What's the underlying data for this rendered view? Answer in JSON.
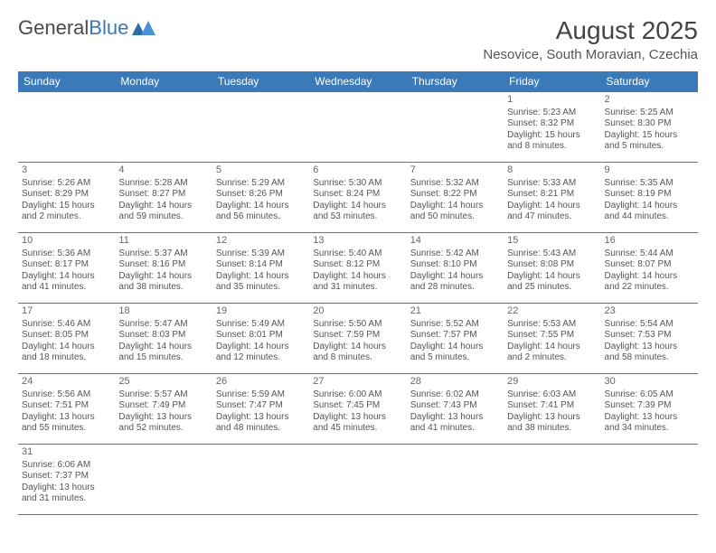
{
  "logo": {
    "text1": "General",
    "text2": "Blue"
  },
  "title": "August 2025",
  "location": "Nesovice, South Moravian, Czechia",
  "colors": {
    "header_bg": "#3a7ab8",
    "border": "#3a7ab8",
    "text": "#555555"
  },
  "weekdays": [
    "Sunday",
    "Monday",
    "Tuesday",
    "Wednesday",
    "Thursday",
    "Friday",
    "Saturday"
  ],
  "weeks": [
    [
      null,
      null,
      null,
      null,
      null,
      {
        "d": "1",
        "sr": "Sunrise: 5:23 AM",
        "ss": "Sunset: 8:32 PM",
        "dl": "Daylight: 15 hours and 8 minutes."
      },
      {
        "d": "2",
        "sr": "Sunrise: 5:25 AM",
        "ss": "Sunset: 8:30 PM",
        "dl": "Daylight: 15 hours and 5 minutes."
      }
    ],
    [
      {
        "d": "3",
        "sr": "Sunrise: 5:26 AM",
        "ss": "Sunset: 8:29 PM",
        "dl": "Daylight: 15 hours and 2 minutes."
      },
      {
        "d": "4",
        "sr": "Sunrise: 5:28 AM",
        "ss": "Sunset: 8:27 PM",
        "dl": "Daylight: 14 hours and 59 minutes."
      },
      {
        "d": "5",
        "sr": "Sunrise: 5:29 AM",
        "ss": "Sunset: 8:26 PM",
        "dl": "Daylight: 14 hours and 56 minutes."
      },
      {
        "d": "6",
        "sr": "Sunrise: 5:30 AM",
        "ss": "Sunset: 8:24 PM",
        "dl": "Daylight: 14 hours and 53 minutes."
      },
      {
        "d": "7",
        "sr": "Sunrise: 5:32 AM",
        "ss": "Sunset: 8:22 PM",
        "dl": "Daylight: 14 hours and 50 minutes."
      },
      {
        "d": "8",
        "sr": "Sunrise: 5:33 AM",
        "ss": "Sunset: 8:21 PM",
        "dl": "Daylight: 14 hours and 47 minutes."
      },
      {
        "d": "9",
        "sr": "Sunrise: 5:35 AM",
        "ss": "Sunset: 8:19 PM",
        "dl": "Daylight: 14 hours and 44 minutes."
      }
    ],
    [
      {
        "d": "10",
        "sr": "Sunrise: 5:36 AM",
        "ss": "Sunset: 8:17 PM",
        "dl": "Daylight: 14 hours and 41 minutes."
      },
      {
        "d": "11",
        "sr": "Sunrise: 5:37 AM",
        "ss": "Sunset: 8:16 PM",
        "dl": "Daylight: 14 hours and 38 minutes."
      },
      {
        "d": "12",
        "sr": "Sunrise: 5:39 AM",
        "ss": "Sunset: 8:14 PM",
        "dl": "Daylight: 14 hours and 35 minutes."
      },
      {
        "d": "13",
        "sr": "Sunrise: 5:40 AM",
        "ss": "Sunset: 8:12 PM",
        "dl": "Daylight: 14 hours and 31 minutes."
      },
      {
        "d": "14",
        "sr": "Sunrise: 5:42 AM",
        "ss": "Sunset: 8:10 PM",
        "dl": "Daylight: 14 hours and 28 minutes."
      },
      {
        "d": "15",
        "sr": "Sunrise: 5:43 AM",
        "ss": "Sunset: 8:08 PM",
        "dl": "Daylight: 14 hours and 25 minutes."
      },
      {
        "d": "16",
        "sr": "Sunrise: 5:44 AM",
        "ss": "Sunset: 8:07 PM",
        "dl": "Daylight: 14 hours and 22 minutes."
      }
    ],
    [
      {
        "d": "17",
        "sr": "Sunrise: 5:46 AM",
        "ss": "Sunset: 8:05 PM",
        "dl": "Daylight: 14 hours and 18 minutes."
      },
      {
        "d": "18",
        "sr": "Sunrise: 5:47 AM",
        "ss": "Sunset: 8:03 PM",
        "dl": "Daylight: 14 hours and 15 minutes."
      },
      {
        "d": "19",
        "sr": "Sunrise: 5:49 AM",
        "ss": "Sunset: 8:01 PM",
        "dl": "Daylight: 14 hours and 12 minutes."
      },
      {
        "d": "20",
        "sr": "Sunrise: 5:50 AM",
        "ss": "Sunset: 7:59 PM",
        "dl": "Daylight: 14 hours and 8 minutes."
      },
      {
        "d": "21",
        "sr": "Sunrise: 5:52 AM",
        "ss": "Sunset: 7:57 PM",
        "dl": "Daylight: 14 hours and 5 minutes."
      },
      {
        "d": "22",
        "sr": "Sunrise: 5:53 AM",
        "ss": "Sunset: 7:55 PM",
        "dl": "Daylight: 14 hours and 2 minutes."
      },
      {
        "d": "23",
        "sr": "Sunrise: 5:54 AM",
        "ss": "Sunset: 7:53 PM",
        "dl": "Daylight: 13 hours and 58 minutes."
      }
    ],
    [
      {
        "d": "24",
        "sr": "Sunrise: 5:56 AM",
        "ss": "Sunset: 7:51 PM",
        "dl": "Daylight: 13 hours and 55 minutes."
      },
      {
        "d": "25",
        "sr": "Sunrise: 5:57 AM",
        "ss": "Sunset: 7:49 PM",
        "dl": "Daylight: 13 hours and 52 minutes."
      },
      {
        "d": "26",
        "sr": "Sunrise: 5:59 AM",
        "ss": "Sunset: 7:47 PM",
        "dl": "Daylight: 13 hours and 48 minutes."
      },
      {
        "d": "27",
        "sr": "Sunrise: 6:00 AM",
        "ss": "Sunset: 7:45 PM",
        "dl": "Daylight: 13 hours and 45 minutes."
      },
      {
        "d": "28",
        "sr": "Sunrise: 6:02 AM",
        "ss": "Sunset: 7:43 PM",
        "dl": "Daylight: 13 hours and 41 minutes."
      },
      {
        "d": "29",
        "sr": "Sunrise: 6:03 AM",
        "ss": "Sunset: 7:41 PM",
        "dl": "Daylight: 13 hours and 38 minutes."
      },
      {
        "d": "30",
        "sr": "Sunrise: 6:05 AM",
        "ss": "Sunset: 7:39 PM",
        "dl": "Daylight: 13 hours and 34 minutes."
      }
    ],
    [
      {
        "d": "31",
        "sr": "Sunrise: 6:06 AM",
        "ss": "Sunset: 7:37 PM",
        "dl": "Daylight: 13 hours and 31 minutes."
      },
      null,
      null,
      null,
      null,
      null,
      null
    ]
  ]
}
